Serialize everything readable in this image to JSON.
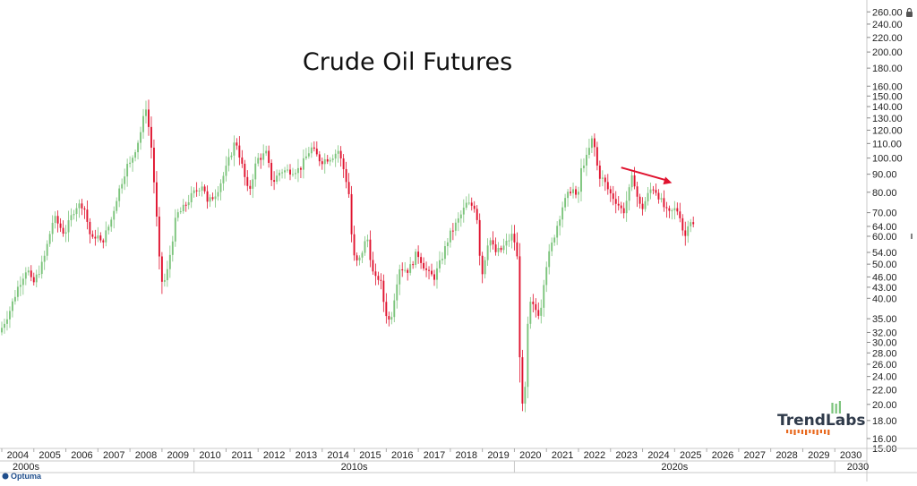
{
  "brand": {
    "logo_text": "TrendLabs",
    "footer_text": "Optuma"
  },
  "chart_data": {
    "type": "candlestick",
    "title": "Crude Oil Futures",
    "y_scale": "log",
    "ylim": [
      15,
      265
    ],
    "xlim": [
      "2004-01",
      "2030-12"
    ],
    "y_ticks": [
      15,
      16,
      18,
      20,
      22,
      24,
      26,
      28,
      30,
      32,
      35,
      40,
      43,
      46,
      50,
      54,
      60,
      64,
      70,
      80,
      90,
      100,
      110,
      120,
      130,
      140,
      150,
      160,
      180,
      200,
      220,
      240,
      260
    ],
    "y_tick_labels": [
      "15.00",
      "16.00",
      "18.00",
      "20.00",
      "22.00",
      "24.00",
      "26.00",
      "28.00",
      "30.00",
      "32.00",
      "35.00",
      "40.00",
      "43.00",
      "46.00",
      "50.00",
      "54.00",
      "60.00",
      "64.00",
      "70.00",
      "80.00",
      "90.00",
      "100.00",
      "110.00",
      "120.00",
      "130.00",
      "140.00",
      "150.00",
      "160.00",
      "180.00",
      "200.00",
      "220.00",
      "240.00",
      "260.00"
    ],
    "x_year_labels": [
      "2004",
      "2005",
      "2006",
      "2007",
      "2008",
      "2009",
      "2010",
      "2011",
      "2012",
      "2013",
      "2014",
      "2015",
      "2016",
      "2017",
      "2018",
      "2019",
      "2020",
      "2021",
      "2022",
      "2023",
      "2024",
      "2025",
      "2026",
      "2027",
      "2028",
      "2029",
      "2030"
    ],
    "x_decade_labels": [
      "2000s",
      "2010s",
      "2020s",
      "2030"
    ],
    "colors": {
      "up": "#7cc47c",
      "down": "#e0132f",
      "arrow": "#e0132f",
      "grid": "#e6e6e6",
      "axis": "#c8c8c8"
    },
    "annotations": [
      {
        "type": "arrow",
        "from": [
          "2023-05",
          94
        ],
        "to": [
          "2024-12",
          85
        ]
      }
    ],
    "monthly_close": [
      [
        2004.0,
        33.0
      ],
      [
        2004.25,
        37.0
      ],
      [
        2004.5,
        43.0
      ],
      [
        2004.79,
        49.0
      ],
      [
        2004.96,
        43.5
      ],
      [
        2005.3,
        51.0
      ],
      [
        2005.62,
        68.0
      ],
      [
        2005.96,
        61.0
      ],
      [
        2006.3,
        73.0
      ],
      [
        2006.55,
        74.0
      ],
      [
        2006.8,
        58.0
      ],
      [
        2006.96,
        61.0
      ],
      [
        2007.1,
        57.0
      ],
      [
        2007.4,
        66.0
      ],
      [
        2007.6,
        78.0
      ],
      [
        2007.9,
        95.0
      ],
      [
        2008.0,
        96.0
      ],
      [
        2008.3,
        115.0
      ],
      [
        2008.5,
        140.0
      ],
      [
        2008.68,
        105.0
      ],
      [
        2008.83,
        68.0
      ],
      [
        2008.96,
        44.6
      ],
      [
        2009.12,
        45.0
      ],
      [
        2009.45,
        69.0
      ],
      [
        2009.62,
        71.0
      ],
      [
        2009.96,
        79.0
      ],
      [
        2010.3,
        85.0
      ],
      [
        2010.4,
        74.0
      ],
      [
        2010.7,
        80.0
      ],
      [
        2010.96,
        91.0
      ],
      [
        2011.3,
        113.0
      ],
      [
        2011.5,
        95.0
      ],
      [
        2011.7,
        79.0
      ],
      [
        2011.96,
        99.0
      ],
      [
        2012.25,
        103.0
      ],
      [
        2012.45,
        85.0
      ],
      [
        2012.7,
        92.0
      ],
      [
        2012.96,
        92.0
      ],
      [
        2013.3,
        93.0
      ],
      [
        2013.65,
        107.0
      ],
      [
        2013.96,
        98.0
      ],
      [
        2014.3,
        101.0
      ],
      [
        2014.5,
        105.0
      ],
      [
        2014.7,
        91.0
      ],
      [
        2014.83,
        80.0
      ],
      [
        2014.96,
        53.0
      ],
      [
        2015.12,
        50.0
      ],
      [
        2015.4,
        60.0
      ],
      [
        2015.62,
        45.0
      ],
      [
        2015.8,
        46.0
      ],
      [
        2015.96,
        37.0
      ],
      [
        2016.12,
        34.0
      ],
      [
        2016.4,
        49.0
      ],
      [
        2016.7,
        48.0
      ],
      [
        2016.96,
        54.0
      ],
      [
        2017.3,
        47.0
      ],
      [
        2017.5,
        46.0
      ],
      [
        2017.7,
        51.0
      ],
      [
        2017.96,
        60.0
      ],
      [
        2018.3,
        68.0
      ],
      [
        2018.5,
        74.0
      ],
      [
        2018.76,
        73.0
      ],
      [
        2018.87,
        65.0
      ],
      [
        2018.96,
        45.0
      ],
      [
        2019.2,
        60.0
      ],
      [
        2019.4,
        54.0
      ],
      [
        2019.6,
        55.0
      ],
      [
        2019.96,
        61.0
      ],
      [
        2020.1,
        51.0
      ],
      [
        2020.2,
        20.5
      ],
      [
        2020.3,
        18.8
      ],
      [
        2020.45,
        39.0
      ],
      [
        2020.8,
        36.0
      ],
      [
        2020.96,
        48.5
      ],
      [
        2021.3,
        63.0
      ],
      [
        2021.5,
        73.0
      ],
      [
        2021.8,
        83.0
      ],
      [
        2021.96,
        75.0
      ],
      [
        2022.1,
        95.0
      ],
      [
        2022.25,
        100.0
      ],
      [
        2022.45,
        115.0
      ],
      [
        2022.62,
        90.0
      ],
      [
        2022.8,
        86.0
      ],
      [
        2022.96,
        80.0
      ],
      [
        2023.2,
        75.0
      ],
      [
        2023.4,
        70.0
      ],
      [
        2023.6,
        82.0
      ],
      [
        2023.7,
        90.0
      ],
      [
        2023.83,
        78.0
      ],
      [
        2023.96,
        71.0
      ],
      [
        2024.15,
        78.0
      ],
      [
        2024.3,
        83.0
      ],
      [
        2024.45,
        80.0
      ],
      [
        2024.62,
        74.0
      ],
      [
        2024.8,
        69.0
      ],
      [
        2024.96,
        71.0
      ],
      [
        2025.05,
        72.0
      ],
      [
        2025.2,
        68.0
      ],
      [
        2025.3,
        58.0
      ],
      [
        2025.45,
        68.0
      ],
      [
        2025.6,
        64.0
      ]
    ]
  }
}
